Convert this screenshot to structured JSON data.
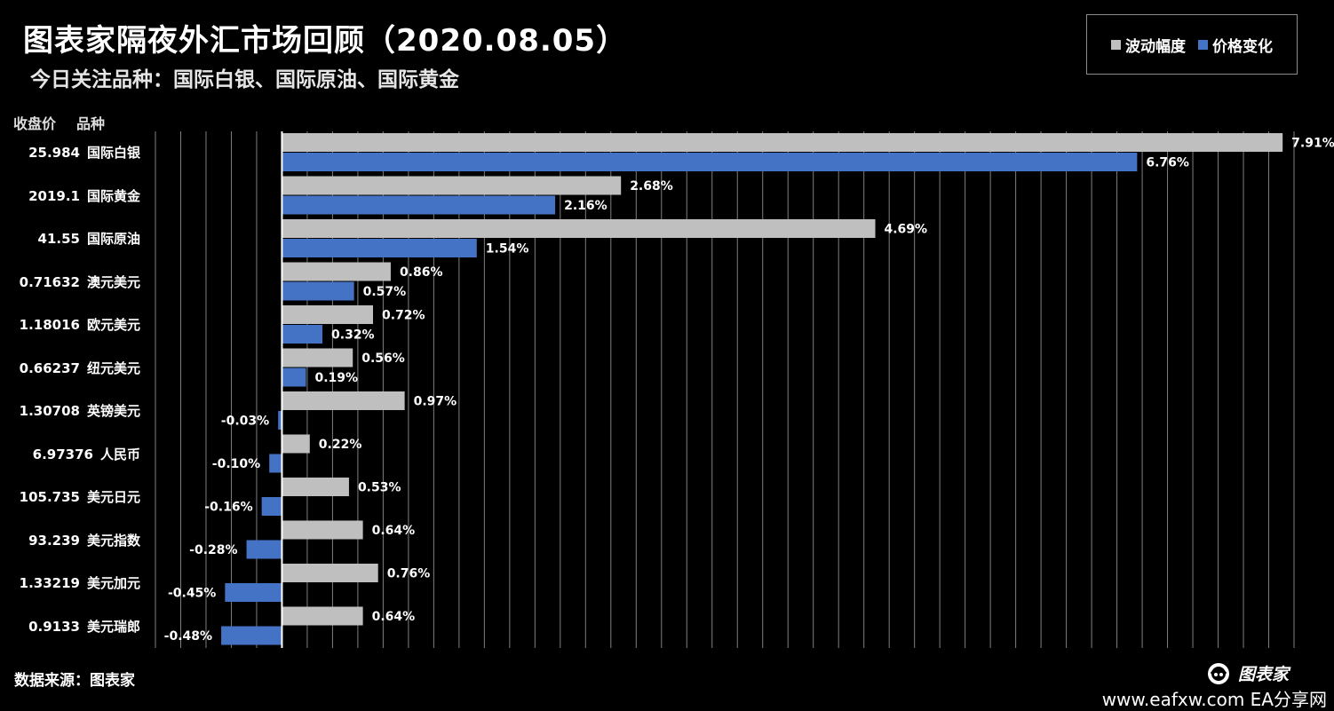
{
  "title": "图表家隔夜外汇市场回顾（2020.08.05）",
  "subtitle": "今日关注品种：国际白银、国际原油、国际黄金",
  "legend": {
    "volatility": "波动幅度",
    "change": "价格变化"
  },
  "columns": {
    "price": "收盘价",
    "name": "品种"
  },
  "colors": {
    "volatility": "#bfbfbf",
    "change": "#4472c4",
    "grid": "#7f7f7f",
    "axis": "#ffffff"
  },
  "footer": {
    "source": "数据来源：图表家",
    "brand": "图表家",
    "site": "www.eafxw.com   EA分享网"
  },
  "chart_data": {
    "type": "bar",
    "orientation": "horizontal",
    "categories": [
      "国际白银",
      "国际黄金",
      "国际原油",
      "澳元美元",
      "欧元美元",
      "纽元美元",
      "英镑美元",
      "人民币",
      "美元日元",
      "美元指数",
      "美元加元",
      "美元瑞郎"
    ],
    "prices": [
      "25.984",
      "2019.1",
      "41.55",
      "0.71632",
      "1.18016",
      "0.66237",
      "1.30708",
      "6.97376",
      "105.735",
      "93.239",
      "1.33219",
      "0.9133"
    ],
    "series": [
      {
        "name": "波动幅度",
        "values": [
          7.91,
          2.68,
          4.69,
          0.86,
          0.72,
          0.56,
          0.97,
          0.22,
          0.53,
          0.64,
          0.76,
          0.64
        ],
        "labels": [
          "7.91%",
          "2.68%",
          "4.69%",
          "0.86%",
          "0.72%",
          "0.56%",
          "0.97%",
          "0.22%",
          "0.53%",
          "0.64%",
          "0.76%",
          "0.64%"
        ]
      },
      {
        "name": "价格变化",
        "values": [
          6.76,
          2.16,
          1.54,
          0.57,
          0.32,
          0.19,
          -0.03,
          -0.1,
          -0.16,
          -0.28,
          -0.45,
          -0.48
        ],
        "labels": [
          "6.76%",
          "2.16%",
          "1.54%",
          "0.57%",
          "0.32%",
          "0.19%",
          "-0.03%",
          "-0.10%",
          "-0.16%",
          "-0.28%",
          "-0.45%",
          "-0.48%"
        ]
      }
    ],
    "xlim": [
      -1.0,
      8.0
    ],
    "grid": true,
    "legend_position": "top-right"
  }
}
